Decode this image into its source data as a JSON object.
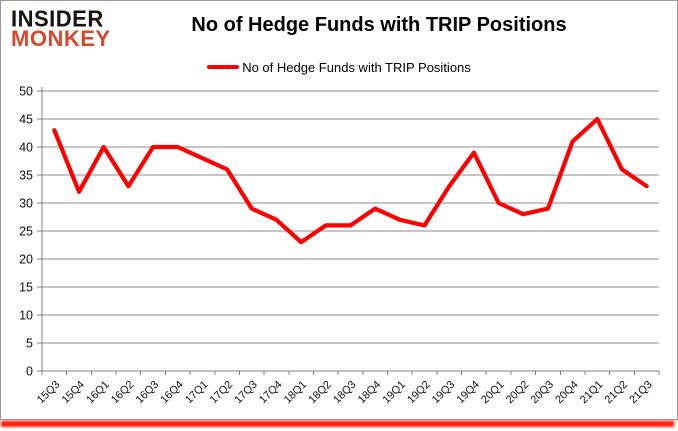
{
  "branding": {
    "logo_line1": "INSIDER",
    "logo_line2": "MONKEY",
    "logo_color_primary": "#17130f",
    "logo_color_secondary": "#d6492f"
  },
  "header": {
    "title": "No of Hedge Funds with TRIP Positions"
  },
  "legend": {
    "label": "No of Hedge Funds with TRIP Positions",
    "line_color": "#ff0000"
  },
  "chart_data": {
    "type": "line",
    "title": "No of Hedge Funds with TRIP Positions",
    "categories": [
      "15Q3",
      "15Q4",
      "16Q1",
      "16Q2",
      "16Q3",
      "16Q4",
      "17Q1",
      "17Q2",
      "17Q3",
      "17Q4",
      "18Q1",
      "18Q2",
      "18Q3",
      "18Q4",
      "19Q1",
      "19Q2",
      "19Q3",
      "19Q4",
      "20Q1",
      "20Q2",
      "20Q3",
      "20Q4",
      "21Q1",
      "21Q2",
      "21Q3"
    ],
    "series": [
      {
        "name": "No of Hedge Funds with TRIP Positions",
        "color": "#ff0000",
        "values": [
          43,
          32,
          40,
          33,
          40,
          40,
          38,
          36,
          29,
          27,
          23,
          26,
          26,
          29,
          27,
          26,
          33,
          39,
          30,
          28,
          29,
          41,
          45,
          36,
          33
        ]
      }
    ],
    "ylim": [
      0,
      50
    ],
    "y_tick_step": 5,
    "grid": true,
    "legend_position": "top",
    "grid_color": "#8c8c8c",
    "axis_color": "#808080",
    "label_color": "#111111"
  }
}
